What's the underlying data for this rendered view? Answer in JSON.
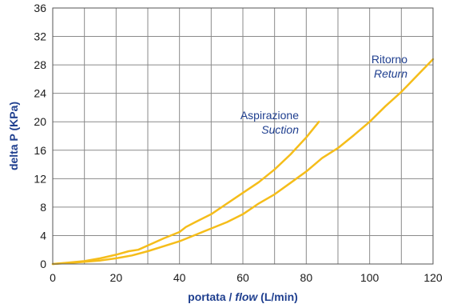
{
  "chart_data": {
    "type": "line",
    "xlabel_parts": [
      "portata / ",
      "flow",
      " (L/min)"
    ],
    "ylabel": "delta P (KPa)",
    "xlim": [
      0,
      120
    ],
    "ylim": [
      0,
      36
    ],
    "xticks": [
      "0",
      "20",
      "40",
      "60",
      "80",
      "100",
      "120"
    ],
    "yticks": [
      "0",
      "4",
      "8",
      "12",
      "16",
      "20",
      "24",
      "28",
      "32",
      "36"
    ],
    "grid": true,
    "series": [
      {
        "name": "Aspirazione",
        "name_en": "Suction",
        "color": "#f5bd1a",
        "x": [
          0,
          5,
          10,
          15,
          20,
          24,
          27,
          30,
          35,
          40,
          42,
          45,
          50,
          55,
          60,
          65,
          70,
          75,
          80,
          84
        ],
        "y": [
          0,
          0.2,
          0.4,
          0.8,
          1.3,
          1.8,
          2.0,
          2.6,
          3.6,
          4.5,
          5.2,
          5.9,
          7.0,
          8.5,
          10.0,
          11.5,
          13.3,
          15.4,
          17.8,
          20.0
        ]
      },
      {
        "name": "Ritorno",
        "name_en": "Return",
        "color": "#f5bd1a",
        "x": [
          0,
          5,
          10,
          15,
          20,
          25,
          30,
          35,
          40,
          45,
          50,
          55,
          60,
          65,
          70,
          75,
          80,
          85,
          90,
          95,
          100,
          105,
          110,
          115,
          120
        ],
        "y": [
          0,
          0.15,
          0.3,
          0.5,
          0.8,
          1.2,
          1.8,
          2.5,
          3.2,
          4.1,
          5.0,
          5.9,
          7.0,
          8.5,
          9.8,
          11.4,
          13.0,
          14.9,
          16.3,
          18.1,
          20.0,
          22.2,
          24.2,
          26.5,
          28.8
        ]
      }
    ],
    "annotations": [
      {
        "series": 0,
        "line1": "Aspirazione",
        "line2": "Suction",
        "at_x": 77,
        "at_y": 20.5
      },
      {
        "series": 1,
        "line1": "Ritorno",
        "line2": "Return",
        "at_x": 111,
        "at_y": 27.5
      }
    ]
  }
}
